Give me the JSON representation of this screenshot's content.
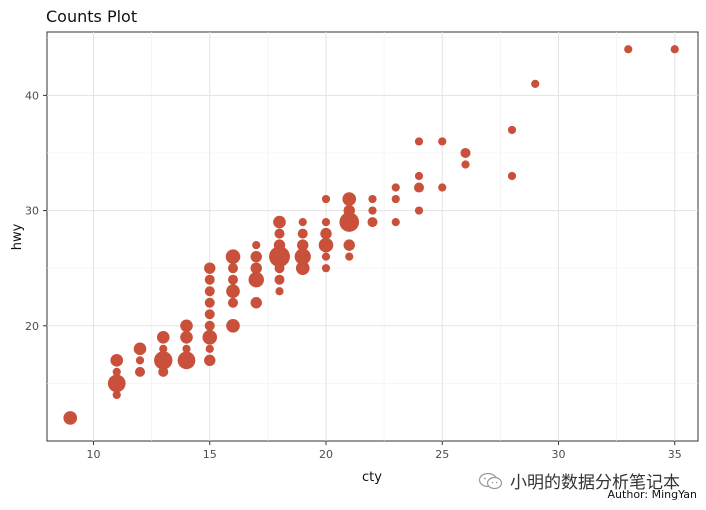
{
  "watermark": {
    "text": "小明的数据分析笔记本",
    "icon": "wechat-icon"
  },
  "chart_data": {
    "type": "scatter",
    "title": "Counts Plot",
    "xlabel": "cty",
    "ylabel": "hwy",
    "caption": "Author: MingYan",
    "xlim": [
      8,
      36
    ],
    "ylim": [
      10,
      45.5
    ],
    "xticks": [
      10,
      15,
      20,
      25,
      30,
      35
    ],
    "yticks": [
      20,
      30,
      40
    ],
    "grid": true,
    "legend": "none",
    "color": "#C9503A",
    "size_encoding": "count",
    "points": [
      {
        "x": 9,
        "y": 12,
        "n": 5
      },
      {
        "x": 11,
        "y": 14,
        "n": 1
      },
      {
        "x": 11,
        "y": 15,
        "n": 10
      },
      {
        "x": 11,
        "y": 16,
        "n": 1
      },
      {
        "x": 11,
        "y": 17,
        "n": 4
      },
      {
        "x": 12,
        "y": 16,
        "n": 2
      },
      {
        "x": 12,
        "y": 17,
        "n": 1
      },
      {
        "x": 12,
        "y": 18,
        "n": 4
      },
      {
        "x": 13,
        "y": 16,
        "n": 2
      },
      {
        "x": 13,
        "y": 17,
        "n": 11
      },
      {
        "x": 13,
        "y": 18,
        "n": 1
      },
      {
        "x": 13,
        "y": 19,
        "n": 4
      },
      {
        "x": 14,
        "y": 17,
        "n": 10
      },
      {
        "x": 14,
        "y": 18,
        "n": 1
      },
      {
        "x": 14,
        "y": 19,
        "n": 4
      },
      {
        "x": 14,
        "y": 20,
        "n": 4
      },
      {
        "x": 15,
        "y": 17,
        "n": 3
      },
      {
        "x": 15,
        "y": 18,
        "n": 1
      },
      {
        "x": 15,
        "y": 19,
        "n": 6
      },
      {
        "x": 15,
        "y": 20,
        "n": 2
      },
      {
        "x": 15,
        "y": 21,
        "n": 2
      },
      {
        "x": 15,
        "y": 22,
        "n": 2
      },
      {
        "x": 15,
        "y": 23,
        "n": 2
      },
      {
        "x": 15,
        "y": 24,
        "n": 2
      },
      {
        "x": 15,
        "y": 25,
        "n": 3
      },
      {
        "x": 16,
        "y": 20,
        "n": 5
      },
      {
        "x": 16,
        "y": 22,
        "n": 2
      },
      {
        "x": 16,
        "y": 23,
        "n": 5
      },
      {
        "x": 16,
        "y": 24,
        "n": 2
      },
      {
        "x": 16,
        "y": 25,
        "n": 2
      },
      {
        "x": 16,
        "y": 26,
        "n": 6
      },
      {
        "x": 17,
        "y": 22,
        "n": 3
      },
      {
        "x": 17,
        "y": 24,
        "n": 7
      },
      {
        "x": 17,
        "y": 25,
        "n": 3
      },
      {
        "x": 17,
        "y": 26,
        "n": 3
      },
      {
        "x": 17,
        "y": 27,
        "n": 1
      },
      {
        "x": 18,
        "y": 23,
        "n": 1
      },
      {
        "x": 18,
        "y": 24,
        "n": 2
      },
      {
        "x": 18,
        "y": 25,
        "n": 2
      },
      {
        "x": 18,
        "y": 26,
        "n": 15
      },
      {
        "x": 18,
        "y": 27,
        "n": 3
      },
      {
        "x": 18,
        "y": 28,
        "n": 2
      },
      {
        "x": 18,
        "y": 29,
        "n": 4
      },
      {
        "x": 19,
        "y": 25,
        "n": 5
      },
      {
        "x": 19,
        "y": 26,
        "n": 8
      },
      {
        "x": 19,
        "y": 27,
        "n": 3
      },
      {
        "x": 19,
        "y": 28,
        "n": 2
      },
      {
        "x": 19,
        "y": 29,
        "n": 1
      },
      {
        "x": 20,
        "y": 25,
        "n": 1
      },
      {
        "x": 20,
        "y": 26,
        "n": 1
      },
      {
        "x": 20,
        "y": 27,
        "n": 6
      },
      {
        "x": 20,
        "y": 28,
        "n": 3
      },
      {
        "x": 20,
        "y": 29,
        "n": 1
      },
      {
        "x": 20,
        "y": 31,
        "n": 1
      },
      {
        "x": 21,
        "y": 26,
        "n": 1
      },
      {
        "x": 21,
        "y": 27,
        "n": 3
      },
      {
        "x": 21,
        "y": 29,
        "n": 13
      },
      {
        "x": 21,
        "y": 30,
        "n": 3
      },
      {
        "x": 21,
        "y": 31,
        "n": 5
      },
      {
        "x": 22,
        "y": 29,
        "n": 2
      },
      {
        "x": 22,
        "y": 30,
        "n": 1
      },
      {
        "x": 22,
        "y": 31,
        "n": 1
      },
      {
        "x": 23,
        "y": 29,
        "n": 1
      },
      {
        "x": 23,
        "y": 31,
        "n": 1
      },
      {
        "x": 23,
        "y": 32,
        "n": 1
      },
      {
        "x": 24,
        "y": 30,
        "n": 1
      },
      {
        "x": 24,
        "y": 32,
        "n": 2
      },
      {
        "x": 24,
        "y": 33,
        "n": 1
      },
      {
        "x": 24,
        "y": 36,
        "n": 1
      },
      {
        "x": 25,
        "y": 32,
        "n": 1
      },
      {
        "x": 25,
        "y": 36,
        "n": 1
      },
      {
        "x": 26,
        "y": 34,
        "n": 1
      },
      {
        "x": 26,
        "y": 35,
        "n": 2
      },
      {
        "x": 28,
        "y": 33,
        "n": 1
      },
      {
        "x": 28,
        "y": 37,
        "n": 1
      },
      {
        "x": 29,
        "y": 41,
        "n": 1
      },
      {
        "x": 33,
        "y": 44,
        "n": 1
      },
      {
        "x": 35,
        "y": 44,
        "n": 1
      }
    ]
  }
}
